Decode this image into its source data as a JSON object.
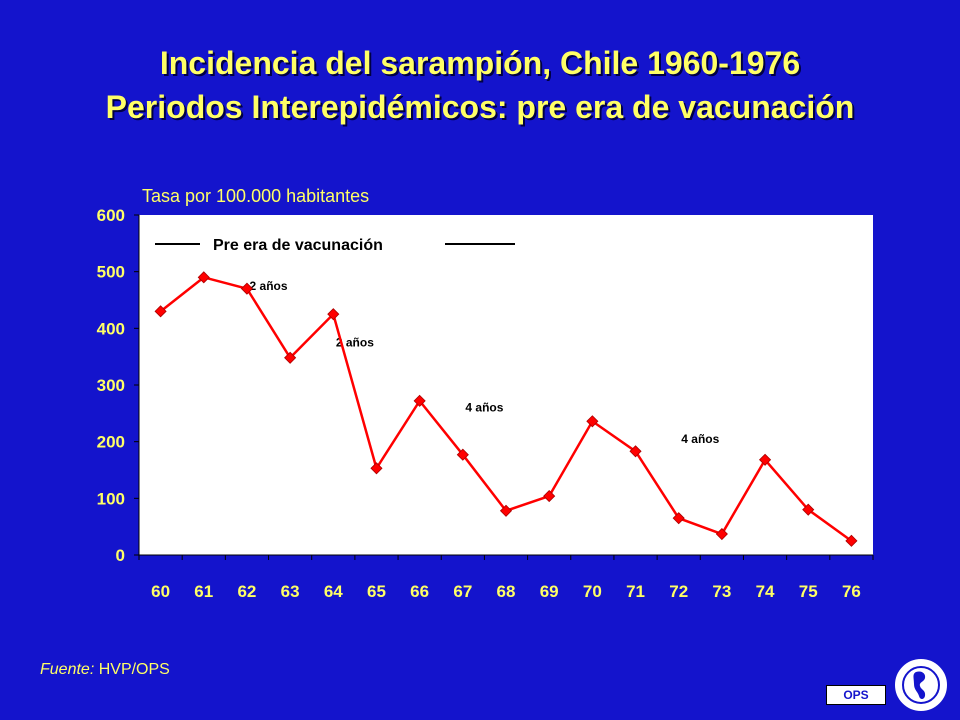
{
  "title_line1": "Incidencia del sarampión, Chile 1960-1976",
  "title_line2": "Periodos Interepidémicos: pre era de vacunación",
  "source_prefix": "Fuente:",
  "source_text": " HVP/OPS",
  "badge_label": "OPS",
  "colors": {
    "background": "#1414cc",
    "text": "#ffff66",
    "plot_area": "#ffffff",
    "series": "#ff0000"
  },
  "chart_data": {
    "type": "line",
    "title": "",
    "xlabel": "",
    "ylabel": "Tasa por 100.000 habitantes",
    "categories": [
      "60",
      "61",
      "62",
      "63",
      "64",
      "65",
      "66",
      "67",
      "68",
      "69",
      "70",
      "71",
      "72",
      "73",
      "74",
      "75",
      "76"
    ],
    "ylim": [
      0,
      600
    ],
    "yticks": [
      0,
      100,
      200,
      300,
      400,
      500,
      600
    ],
    "grid": false,
    "series": [
      {
        "values": [
          430,
          490,
          470,
          348,
          425,
          153,
          272,
          177,
          78,
          104,
          236,
          183,
          65,
          37,
          168,
          80,
          25
        ]
      }
    ],
    "legend_label": "Pre era de vacunación",
    "annotations": [
      {
        "text": "2 años",
        "x_after": "62",
        "y": 475
      },
      {
        "text": "2 años",
        "x_after": "64",
        "y": 375
      },
      {
        "text": "4 años",
        "x_after": "67",
        "y": 260
      },
      {
        "text": "4 años",
        "x_after": "72",
        "y": 205
      }
    ]
  }
}
